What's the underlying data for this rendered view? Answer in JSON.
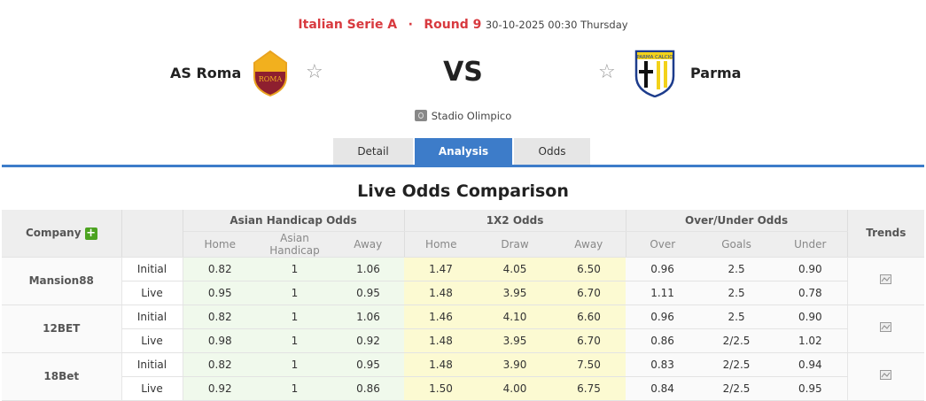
{
  "match": {
    "league": "Italian Serie A",
    "separator": "·",
    "round": "Round 9",
    "datetime": "30-10-2025 00:30 Thursday",
    "home": "AS Roma",
    "away": "Parma",
    "vs": "VS",
    "venue": "Stadio Olimpico",
    "home_logo_text": "ROMA",
    "away_logo_text": "PARMA CALCIO"
  },
  "tabs": [
    {
      "label": "Detail"
    },
    {
      "label": "Analysis",
      "active": true
    },
    {
      "label": "Odds"
    }
  ],
  "section_title": "Live Odds Comparison",
  "table": {
    "company_header": "Company",
    "trends_header": "Trends",
    "groups": [
      "Asian Handicap Odds",
      "1X2 Odds",
      "Over/Under Odds"
    ],
    "subheaders": [
      "Home",
      "Asian Handicap",
      "Away",
      "Home",
      "Draw",
      "Away",
      "Over",
      "Goals",
      "Under"
    ],
    "companies": [
      {
        "name": "Mansion88",
        "rows": [
          {
            "type": "Initial",
            "values": [
              "0.82",
              "1",
              "1.06",
              "1.47",
              "4.05",
              "6.50",
              "0.96",
              "2.5",
              "0.90"
            ]
          },
          {
            "type": "Live",
            "values": [
              "0.95",
              "1",
              "0.95",
              "1.48",
              "3.95",
              "6.70",
              "1.11",
              "2.5",
              "0.78"
            ]
          }
        ]
      },
      {
        "name": "12BET",
        "rows": [
          {
            "type": "Initial",
            "values": [
              "0.82",
              "1",
              "1.06",
              "1.46",
              "4.10",
              "6.60",
              "0.96",
              "2.5",
              "0.90"
            ]
          },
          {
            "type": "Live",
            "values": [
              "0.98",
              "1",
              "0.92",
              "1.48",
              "3.95",
              "6.70",
              "0.86",
              "2/2.5",
              "1.02"
            ]
          }
        ]
      },
      {
        "name": "18Bet",
        "rows": [
          {
            "type": "Initial",
            "values": [
              "0.82",
              "1",
              "0.95",
              "1.48",
              "3.90",
              "7.50",
              "0.83",
              "2/2.5",
              "0.94"
            ]
          },
          {
            "type": "Live",
            "values": [
              "0.92",
              "1",
              "0.86",
              "1.50",
              "4.00",
              "6.75",
              "0.84",
              "2/2.5",
              "0.95"
            ]
          }
        ]
      }
    ]
  },
  "colors": {
    "accent": "#3d7cc9",
    "league_red": "#d83a3f",
    "ah_bg": "#f0f9ec",
    "x12_bg": "#fcfad2"
  }
}
